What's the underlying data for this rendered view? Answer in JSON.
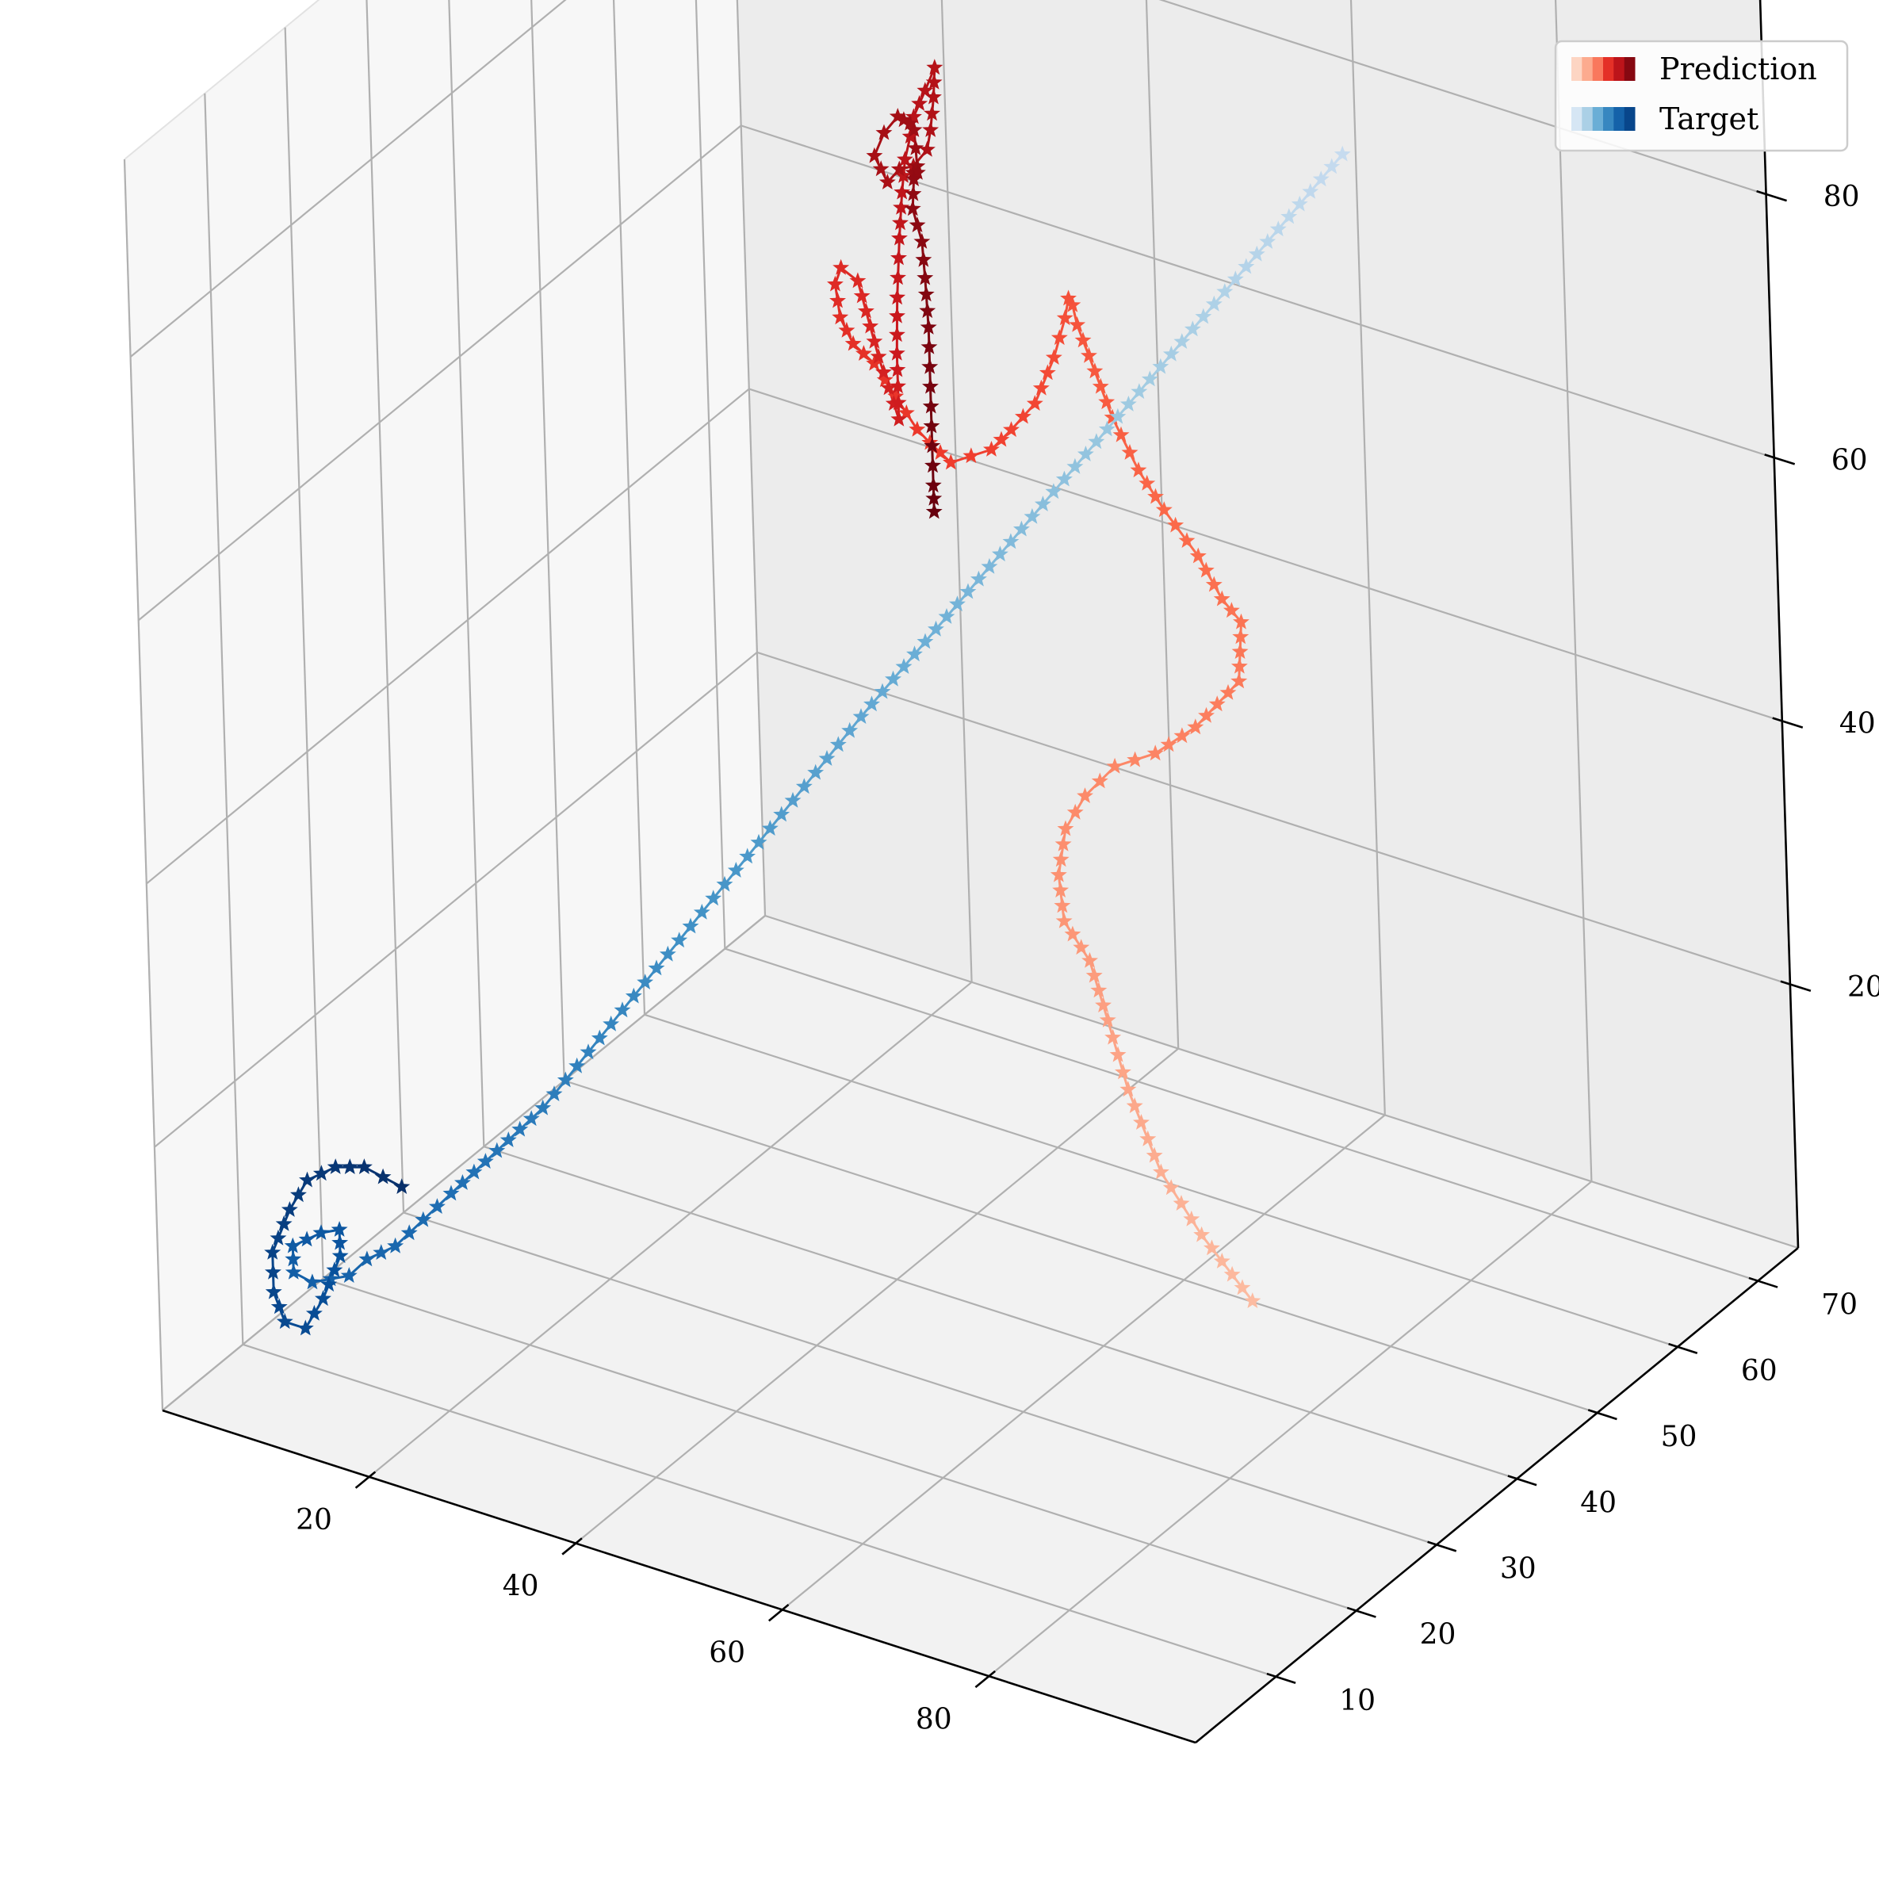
{
  "chart_data": {
    "type": "scatter",
    "projection": "3d",
    "title": "",
    "xlabel": "",
    "ylabel": "",
    "zlabel": "",
    "grid": true,
    "legend_position": "top-right",
    "x_axis": {
      "range": [
        0,
        100
      ],
      "ticks": [
        "20",
        "40",
        "60",
        "80"
      ]
    },
    "y_axis": {
      "range": [
        0,
        75
      ],
      "ticks": [
        "10",
        "20",
        "30",
        "40",
        "50",
        "60",
        "70"
      ]
    },
    "z_axis": {
      "range": [
        0,
        95
      ],
      "ticks": [
        "20",
        "40",
        "60",
        "80"
      ]
    },
    "legend": [
      {
        "label": "Prediction",
        "colors": [
          "#fdd5c3",
          "#fcab8f",
          "#f9785d",
          "#e43027",
          "#bc141a",
          "#860811"
        ]
      },
      {
        "label": "Target",
        "colors": [
          "#d6e6f4",
          "#abd0e6",
          "#6aaed6",
          "#3787c0",
          "#1562a9",
          "#08468b"
        ]
      }
    ],
    "series": [
      {
        "name": "Prediction",
        "marker": "star",
        "colormap": [
          "#fcbba1",
          "#fc9272",
          "#fb6a4a",
          "#ef3b2c",
          "#cb181d",
          "#a50f15",
          "#67000d"
        ],
        "points": [
          [
            94,
            16,
            24
          ],
          [
            86,
            20,
            25
          ],
          [
            79,
            24,
            26
          ],
          [
            72,
            29,
            28
          ],
          [
            67,
            33,
            30
          ],
          [
            63,
            36,
            32
          ],
          [
            59,
            38,
            33
          ],
          [
            57,
            40,
            35
          ],
          [
            57,
            41,
            38
          ],
          [
            59,
            41,
            41
          ],
          [
            62,
            41,
            44
          ],
          [
            66,
            41,
            46
          ],
          [
            70,
            41,
            49
          ],
          [
            73,
            40,
            52
          ],
          [
            76,
            39,
            55
          ],
          [
            77,
            38,
            58
          ],
          [
            78,
            37,
            61
          ],
          [
            77,
            36,
            63
          ],
          [
            74,
            37,
            65
          ],
          [
            70,
            38,
            67
          ],
          [
            66,
            40,
            68
          ],
          [
            62,
            42,
            70
          ],
          [
            58,
            45,
            71
          ],
          [
            54,
            48,
            72
          ],
          [
            52,
            50,
            72
          ],
          [
            50,
            52,
            71
          ],
          [
            48,
            54,
            68
          ],
          [
            46,
            55,
            64
          ],
          [
            44,
            55,
            60
          ],
          [
            42,
            56,
            58
          ],
          [
            40,
            57,
            56
          ],
          [
            38,
            57,
            54
          ],
          [
            36,
            57,
            53
          ],
          [
            34,
            57,
            52
          ],
          [
            32,
            57,
            53
          ],
          [
            30,
            58,
            53
          ],
          [
            28,
            58,
            55
          ],
          [
            26,
            58,
            57
          ],
          [
            24,
            58,
            58
          ],
          [
            22,
            59,
            59
          ],
          [
            20,
            61,
            60
          ],
          [
            19,
            63,
            60
          ],
          [
            19,
            65,
            58
          ],
          [
            20,
            66,
            52
          ],
          [
            21,
            67,
            47
          ],
          [
            21,
            67,
            52
          ],
          [
            22,
            66,
            57
          ],
          [
            24,
            64,
            63
          ],
          [
            26,
            62,
            68
          ],
          [
            28,
            60,
            72
          ],
          [
            31,
            57,
            76
          ],
          [
            33,
            55,
            79
          ],
          [
            35,
            54,
            82
          ],
          [
            36,
            54,
            84
          ],
          [
            35,
            55,
            81
          ],
          [
            33,
            57,
            77
          ],
          [
            31,
            59,
            74
          ],
          [
            28,
            61,
            71
          ],
          [
            25,
            63,
            69
          ],
          [
            23,
            64,
            67
          ],
          [
            21,
            65,
            68
          ],
          [
            22,
            65,
            70
          ],
          [
            25,
            63,
            73
          ],
          [
            28,
            60,
            75
          ],
          [
            31,
            57,
            77
          ],
          [
            33,
            55,
            78
          ],
          [
            34,
            54,
            76
          ],
          [
            32,
            56,
            74
          ],
          [
            30,
            59,
            72
          ],
          [
            28,
            61,
            70
          ],
          [
            27,
            62,
            67
          ],
          [
            27,
            63,
            64
          ],
          [
            28,
            62,
            62
          ],
          [
            29,
            61,
            59
          ],
          [
            29,
            61,
            56
          ],
          [
            29,
            61,
            53
          ],
          [
            29,
            61,
            50
          ],
          [
            29,
            61,
            47
          ],
          [
            29,
            61,
            45
          ]
        ]
      },
      {
        "name": "Target",
        "marker": "star",
        "colormap": [
          "#c6dbef",
          "#9ecae1",
          "#6baed6",
          "#4292c6",
          "#2171b5",
          "#08519c",
          "#08306b"
        ],
        "points": [
          [
            74,
            56,
            86
          ],
          [
            71,
            53,
            82
          ],
          [
            68,
            50,
            78
          ],
          [
            65,
            47,
            74
          ],
          [
            62,
            44,
            70
          ],
          [
            59,
            41,
            66
          ],
          [
            56,
            38,
            62
          ],
          [
            53,
            35,
            58
          ],
          [
            50,
            32,
            54
          ],
          [
            47,
            29,
            50
          ],
          [
            44,
            27,
            46
          ],
          [
            41,
            25,
            42
          ],
          [
            38,
            23,
            38
          ],
          [
            35,
            21,
            34
          ],
          [
            32,
            19,
            30
          ],
          [
            29,
            17,
            26
          ],
          [
            26,
            15,
            22
          ],
          [
            23,
            13,
            19
          ],
          [
            20,
            11,
            16
          ],
          [
            18,
            10,
            14
          ],
          [
            16,
            9,
            12
          ],
          [
            14,
            8,
            11
          ],
          [
            13,
            7,
            10
          ],
          [
            12,
            6,
            10
          ],
          [
            11,
            5,
            10
          ],
          [
            10,
            4,
            11
          ],
          [
            10,
            4,
            13
          ],
          [
            12,
            5,
            14
          ],
          [
            13,
            6,
            14
          ],
          [
            13,
            6,
            12
          ],
          [
            12,
            5,
            9
          ],
          [
            11,
            4,
            7
          ],
          [
            9,
            4,
            7
          ],
          [
            8,
            4,
            9
          ],
          [
            8,
            4,
            12
          ],
          [
            9,
            5,
            15
          ],
          [
            10,
            6,
            17
          ],
          [
            12,
            7,
            18
          ],
          [
            14,
            8,
            18
          ],
          [
            15,
            9,
            17
          ],
          [
            16,
            10,
            16
          ]
        ]
      }
    ]
  }
}
